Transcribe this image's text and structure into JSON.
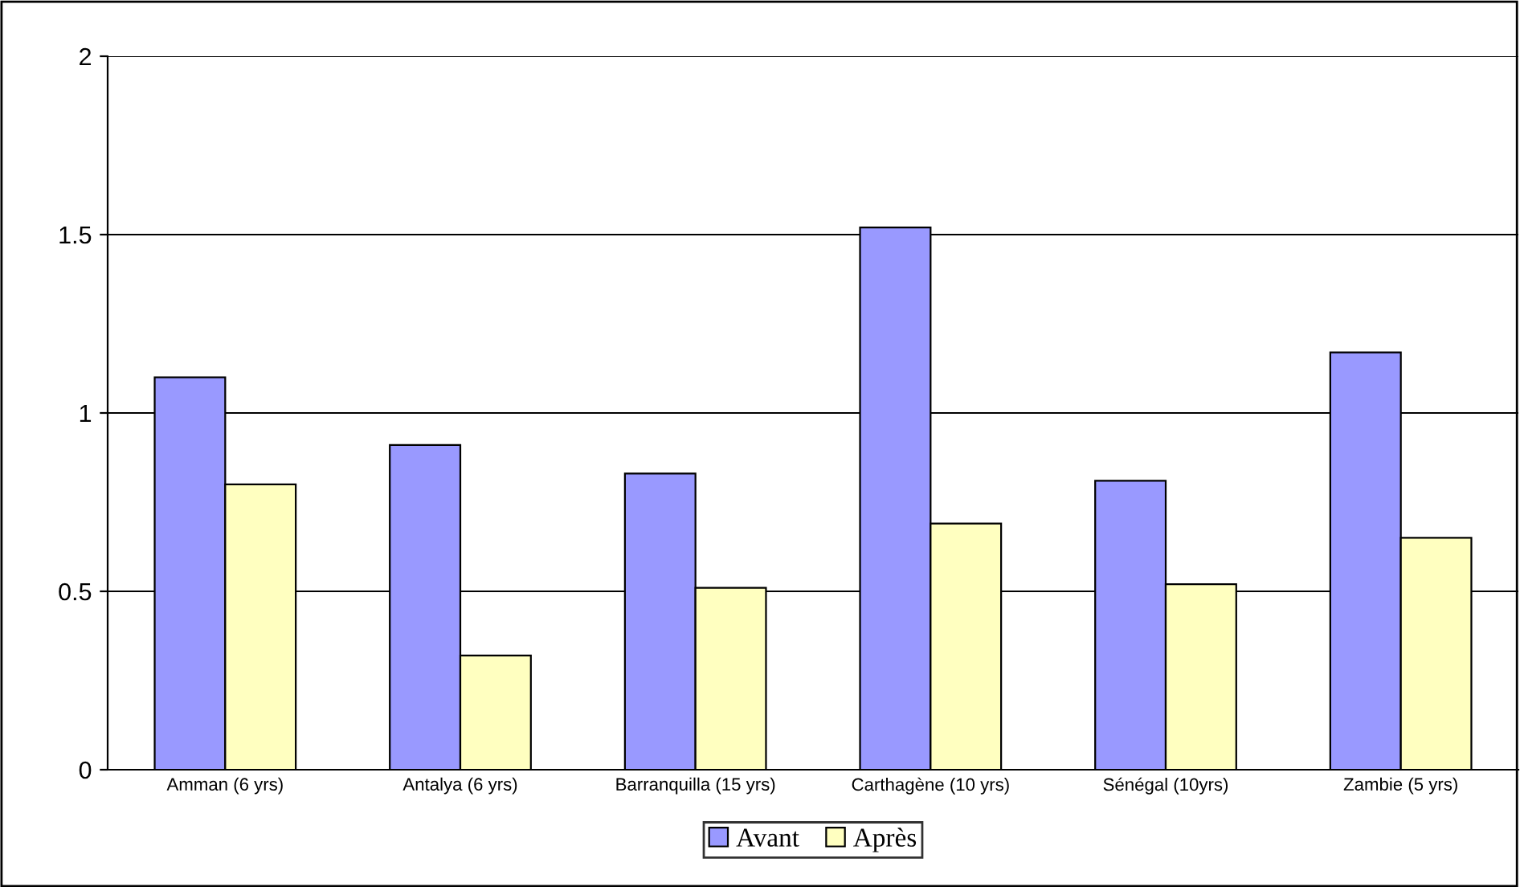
{
  "chart_data": {
    "type": "bar",
    "categories": [
      "Amman (6 yrs)",
      "Antalya (6 yrs)",
      "Barranquilla (15 yrs)",
      "Carthagène (10 yrs)",
      "Sénégal (10yrs)",
      "Zambie (5 yrs)"
    ],
    "series": [
      {
        "name": "Avant",
        "color": "#9999ff",
        "values": [
          1.1,
          0.91,
          0.83,
          1.52,
          0.81,
          1.17
        ]
      },
      {
        "name": "Après",
        "color": "#ffffc0",
        "values": [
          0.8,
          0.32,
          0.51,
          0.69,
          0.52,
          0.65
        ]
      }
    ],
    "ylim": [
      0,
      2
    ],
    "yticks": [
      0,
      0.5,
      1,
      1.5,
      2
    ],
    "grid": "y",
    "legend": "bottom"
  }
}
